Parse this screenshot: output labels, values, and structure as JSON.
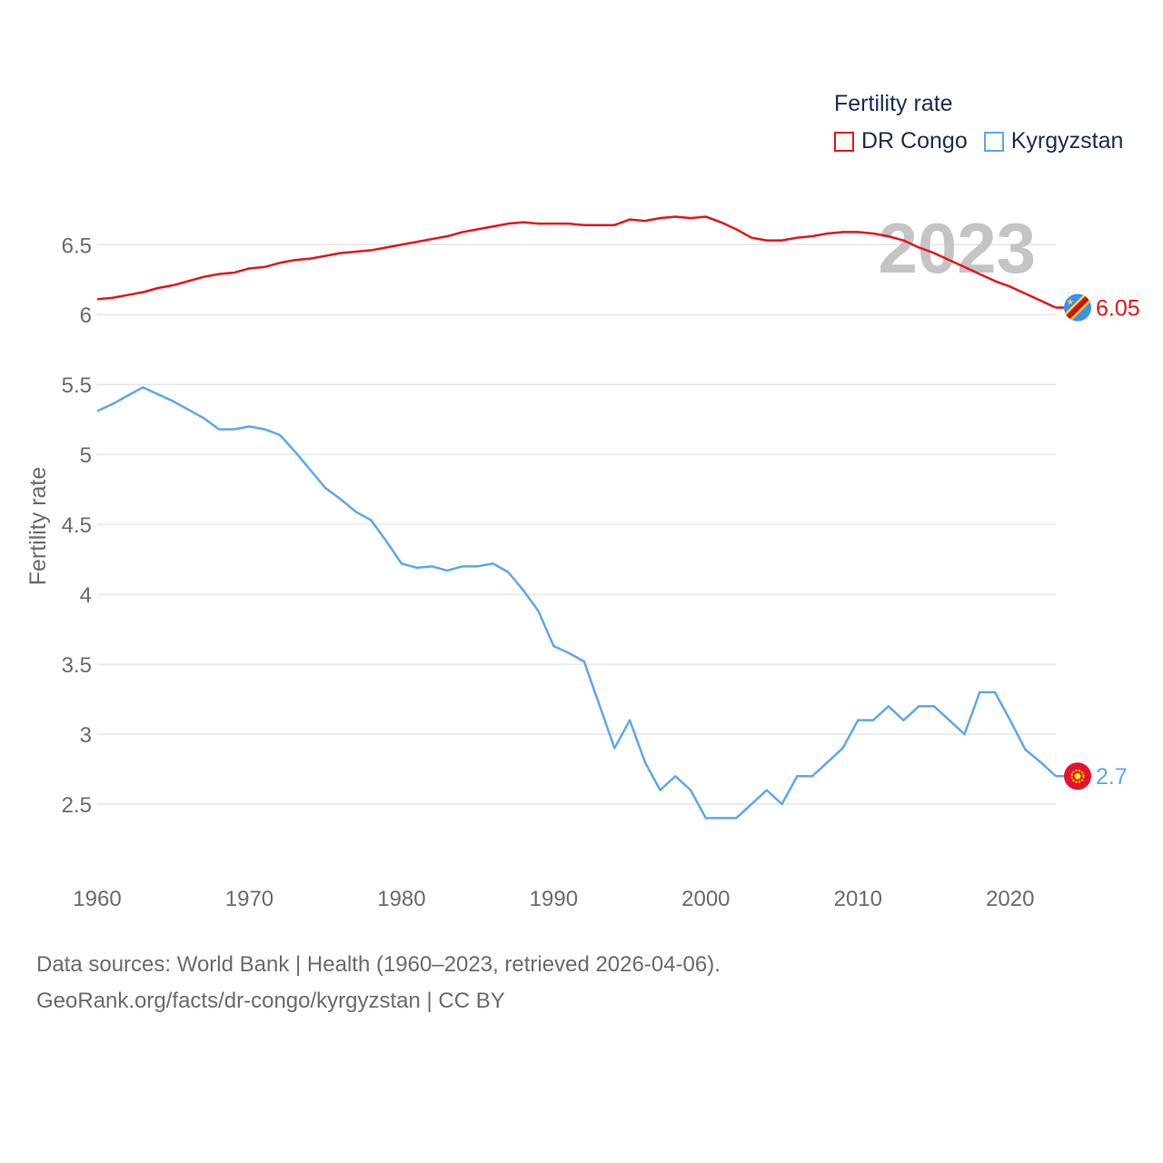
{
  "chart_data": {
    "type": "line",
    "title": "Fertility rate",
    "ylabel": "Fertility rate",
    "xlabel": "",
    "year_label": "2023",
    "x": [
      1960,
      1961,
      1962,
      1963,
      1964,
      1965,
      1966,
      1967,
      1968,
      1969,
      1970,
      1971,
      1972,
      1973,
      1974,
      1975,
      1976,
      1977,
      1978,
      1979,
      1980,
      1981,
      1982,
      1983,
      1984,
      1985,
      1986,
      1987,
      1988,
      1989,
      1990,
      1991,
      1992,
      1993,
      1994,
      1995,
      1996,
      1997,
      1998,
      1999,
      2000,
      2001,
      2002,
      2003,
      2004,
      2005,
      2006,
      2007,
      2008,
      2009,
      2010,
      2011,
      2012,
      2013,
      2014,
      2015,
      2016,
      2017,
      2018,
      2019,
      2020,
      2021,
      2022,
      2023
    ],
    "xlim": [
      1960,
      2023
    ],
    "ylim": [
      2.0,
      6.95
    ],
    "xticks": [
      "1960",
      "1970",
      "1980",
      "1990",
      "2000",
      "2010",
      "2020"
    ],
    "yticks": [
      "2.5",
      "3",
      "3.5",
      "4",
      "4.5",
      "5",
      "5.5",
      "6",
      "6.5"
    ],
    "series": [
      {
        "name": "DR Congo",
        "color": "#e8141c",
        "end_label": "6.05",
        "flag_icon": "dr-congo-flag-icon",
        "values": [
          6.11,
          6.12,
          6.14,
          6.16,
          6.19,
          6.21,
          6.24,
          6.27,
          6.29,
          6.3,
          6.33,
          6.34,
          6.37,
          6.39,
          6.4,
          6.42,
          6.44,
          6.45,
          6.46,
          6.48,
          6.5,
          6.52,
          6.54,
          6.56,
          6.59,
          6.61,
          6.63,
          6.65,
          6.66,
          6.65,
          6.65,
          6.65,
          6.64,
          6.64,
          6.64,
          6.68,
          6.67,
          6.69,
          6.7,
          6.69,
          6.7,
          6.66,
          6.61,
          6.55,
          6.53,
          6.53,
          6.55,
          6.56,
          6.58,
          6.59,
          6.59,
          6.58,
          6.56,
          6.53,
          6.48,
          6.44,
          6.39,
          6.34,
          6.29,
          6.24,
          6.2,
          6.15,
          6.1,
          6.05
        ]
      },
      {
        "name": "Kyrgyzstan",
        "color": "#5fa8e8",
        "end_label": "2.7",
        "flag_icon": "kyrgyzstan-flag-icon",
        "values": [
          5.31,
          5.36,
          5.42,
          5.48,
          5.43,
          5.38,
          5.32,
          5.26,
          5.18,
          5.18,
          5.2,
          5.18,
          5.14,
          5.02,
          4.89,
          4.76,
          4.68,
          4.59,
          4.53,
          4.38,
          4.22,
          4.19,
          4.2,
          4.17,
          4.2,
          4.2,
          4.22,
          4.16,
          4.03,
          3.88,
          3.63,
          3.58,
          3.52,
          3.21,
          2.9,
          3.1,
          2.8,
          2.6,
          2.7,
          2.6,
          2.4,
          2.4,
          2.4,
          2.5,
          2.6,
          2.5,
          2.7,
          2.7,
          2.8,
          2.9,
          3.1,
          3.1,
          3.2,
          3.1,
          3.2,
          3.2,
          3.1,
          3.0,
          3.3,
          3.3,
          3.1,
          2.89,
          2.8,
          2.7
        ]
      }
    ]
  },
  "legend": {
    "title": "Fertility rate",
    "items": [
      "DR Congo",
      "Kyrgyzstan"
    ]
  },
  "footer": {
    "line1": "Data sources: World Bank | Health (1960–2023, retrieved 2026-04-06).",
    "line2": "GeoRank.org/facts/dr-congo/kyrgyzstan | CC BY"
  }
}
